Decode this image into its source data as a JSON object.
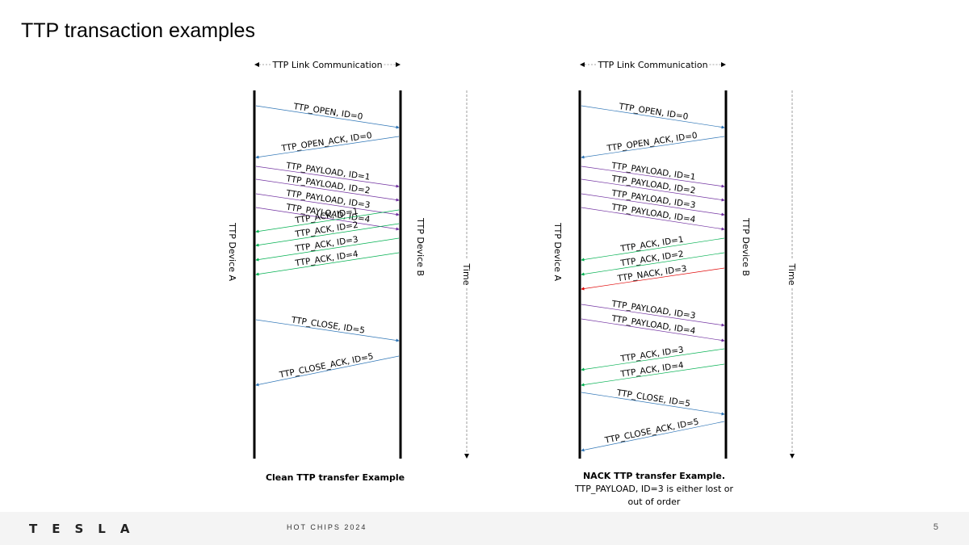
{
  "slide": {
    "title": "TTP transaction examples",
    "page_number": "5"
  },
  "footer": {
    "logo": "TESLA",
    "event": "HOT CHIPS 2024"
  },
  "colors": {
    "open": "#2e75b6",
    "payload": "#7030a0",
    "ack": "#00b050",
    "nack": "#e00000",
    "lifeline": "#000000"
  },
  "diagrams": [
    {
      "id": "clean",
      "header": "TTP Link Communication",
      "device_a": "TTP Device A",
      "device_b": "TTP Device B",
      "time_label": "Time",
      "caption_bold": "Clean TTP transfer Example",
      "caption_lines": [],
      "messages": [
        {
          "label": "TTP_OPEN, ID=0",
          "from": "A",
          "kind": "open"
        },
        {
          "label": "TTP_OPEN_ACK, ID=0",
          "from": "B",
          "kind": "open"
        },
        {
          "label": "TTP_PAYLOAD, ID=1",
          "from": "A",
          "kind": "payload"
        },
        {
          "label": "TTP_PAYLOAD, ID=2",
          "from": "A",
          "kind": "payload"
        },
        {
          "label": "TTP_PAYLOAD, ID=3",
          "from": "A",
          "kind": "payload"
        },
        {
          "label": "TTP_PAYLOAD, ID=4",
          "from": "A",
          "kind": "payload"
        },
        {
          "label": "TTP_ACK, ID=1",
          "from": "B",
          "kind": "ack"
        },
        {
          "label": "TTP_ACK, ID=2",
          "from": "B",
          "kind": "ack"
        },
        {
          "label": "TTP_ACK, ID=3",
          "from": "B",
          "kind": "ack"
        },
        {
          "label": "TTP_ACK, ID=4",
          "from": "B",
          "kind": "ack"
        },
        {
          "label": "TTP_CLOSE, ID=5",
          "from": "A",
          "kind": "open"
        },
        {
          "label": "TTP_CLOSE_ACK, ID=5",
          "from": "B",
          "kind": "open"
        }
      ]
    },
    {
      "id": "nack",
      "header": "TTP Link Communication",
      "device_a": "TTP Device A",
      "device_b": "TTP Device B",
      "time_label": "Time",
      "caption_bold": "NACK TTP transfer Example.",
      "caption_lines": [
        "TTP_PAYLOAD, ID=3 is either lost or",
        "out of order"
      ],
      "messages": [
        {
          "label": "TTP_OPEN, ID=0",
          "from": "A",
          "kind": "open"
        },
        {
          "label": "TTP_OPEN_ACK, ID=0",
          "from": "B",
          "kind": "open"
        },
        {
          "label": "TTP_PAYLOAD, ID=1",
          "from": "A",
          "kind": "payload"
        },
        {
          "label": "TTP_PAYLOAD, ID=2",
          "from": "A",
          "kind": "payload"
        },
        {
          "label": "TTP_PAYLOAD, ID=3",
          "from": "A",
          "kind": "payload"
        },
        {
          "label": "TTP_PAYLOAD, ID=4",
          "from": "A",
          "kind": "payload"
        },
        {
          "label": "TTP_ACK, ID=1",
          "from": "B",
          "kind": "ack"
        },
        {
          "label": "TTP_ACK, ID=2",
          "from": "B",
          "kind": "ack"
        },
        {
          "label": "TTP_NACK, ID=3",
          "from": "B",
          "kind": "nack"
        },
        {
          "label": "TTP_PAYLOAD, ID=3",
          "from": "A",
          "kind": "payload"
        },
        {
          "label": "TTP_PAYLOAD, ID=4",
          "from": "A",
          "kind": "payload"
        },
        {
          "label": "TTP_ACK, ID=3",
          "from": "B",
          "kind": "ack"
        },
        {
          "label": "TTP_ACK, ID=4",
          "from": "B",
          "kind": "ack"
        },
        {
          "label": "TTP_CLOSE, ID=5",
          "from": "A",
          "kind": "open"
        },
        {
          "label": "TTP_CLOSE_ACK, ID=5",
          "from": "B",
          "kind": "open"
        }
      ]
    }
  ]
}
